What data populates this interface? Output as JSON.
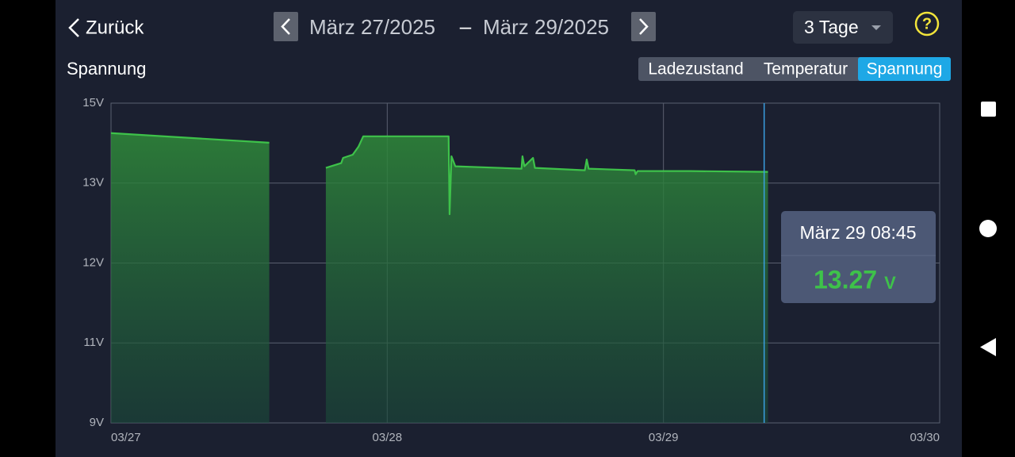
{
  "header": {
    "back": "Zurück",
    "from": "März 27/2025",
    "dash": "–",
    "to": "März 29/2025",
    "range": "3 Tage",
    "help": "?"
  },
  "tabs": {
    "items": [
      "Ladezustand",
      "Temperatur",
      "Spannung"
    ],
    "selected": 2
  },
  "chart_data": {
    "type": "line",
    "title": "Spannung",
    "color": "#3ec24a",
    "x": [
      "03/27 00:00",
      "03/27 13:45",
      "03/27 16:00",
      "03/27 18:40",
      "03/27 19:20",
      "03/27 20:00",
      "03/27 20:10",
      "03/27 21:00",
      "03/27 21:30",
      "03/27 21:55",
      "03/28 05:20",
      "03/28 05:25",
      "03/28 05:35",
      "03/28 05:55",
      "03/28 11:40",
      "03/28 11:45",
      "03/28 11:55",
      "03/28 12:40",
      "03/28 12:50",
      "03/28 17:10",
      "03/28 17:20",
      "03/28 17:30",
      "03/28 21:30",
      "03/28 21:35",
      "03/28 21:45",
      "03/29 02:20",
      "03/29 09:05"
    ],
    "values": [
      14.25,
      14.01,
      null,
      13.38,
      13.44,
      13.5,
      13.63,
      13.71,
      13.91,
      14.17,
      14.17,
      12.61,
      13.67,
      13.42,
      13.36,
      13.67,
      13.42,
      13.63,
      13.38,
      13.32,
      13.59,
      13.36,
      13.32,
      13.22,
      13.3,
      13.3,
      13.28
    ],
    "xlim": [
      "03/27",
      "03/30"
    ],
    "xticks": [
      "03/27",
      "03/28",
      "03/29",
      "03/30"
    ],
    "ylim": [
      9,
      15
    ],
    "yticks": [
      {
        "value": 9,
        "label": "9V"
      },
      {
        "value": 11,
        "label": "11V"
      },
      {
        "value": 12,
        "label": "12V"
      },
      {
        "value": 13,
        "label": "13V"
      },
      {
        "value": 15,
        "label": "15V"
      }
    ],
    "grid": true,
    "tooltip": {
      "x": "03/29 08:45",
      "title": "März 29 08:45",
      "value": 13.27,
      "unit": "V"
    }
  }
}
